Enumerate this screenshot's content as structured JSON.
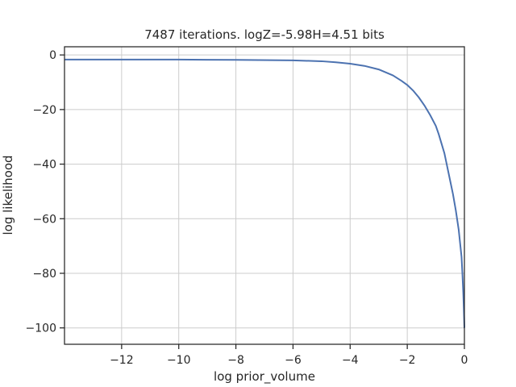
{
  "chart_data": {
    "type": "line",
    "title": "7487 iterations. logZ=-5.98H=4.51 bits",
    "xlabel": "log prior_volume",
    "ylabel": "log likelihood",
    "xlim": [
      -14,
      0
    ],
    "ylim": [
      -106,
      3
    ],
    "grid": true,
    "colors": {
      "line": "#4c72b0",
      "grid": "#cccccc",
      "axes": "#262626"
    },
    "xticks": [
      -12,
      -10,
      -8,
      -6,
      -4,
      -2,
      0
    ],
    "xtick_labels": [
      "−12",
      "−10",
      "−8",
      "−6",
      "−4",
      "−2",
      "0"
    ],
    "yticks": [
      0,
      -20,
      -40,
      -60,
      -80,
      -100
    ],
    "ytick_labels": [
      "0",
      "−20",
      "−40",
      "−60",
      "−80",
      "−100"
    ],
    "series": [
      {
        "x": [
          -14,
          -12,
          -10,
          -8,
          -6,
          -5,
          -4.5,
          -4,
          -3.5,
          -3,
          -2.5,
          -2.2,
          -2,
          -1.8,
          -1.6,
          -1.4,
          -1.2,
          -1,
          -0.9,
          -0.8,
          -0.7,
          -0.6,
          -0.5,
          -0.4,
          -0.3,
          -0.2,
          -0.15,
          -0.1,
          -0.07,
          -0.04,
          -0.02,
          0
        ],
        "y": [
          -1.7,
          -1.7,
          -1.7,
          -1.8,
          -2.0,
          -2.3,
          -2.7,
          -3.2,
          -4.0,
          -5.3,
          -7.5,
          -9.5,
          -11,
          -13,
          -15.5,
          -18.5,
          -22,
          -26,
          -29,
          -32.5,
          -36,
          -41,
          -46,
          -51,
          -57,
          -64,
          -69,
          -74,
          -80,
          -87,
          -93,
          -100
        ]
      }
    ]
  }
}
